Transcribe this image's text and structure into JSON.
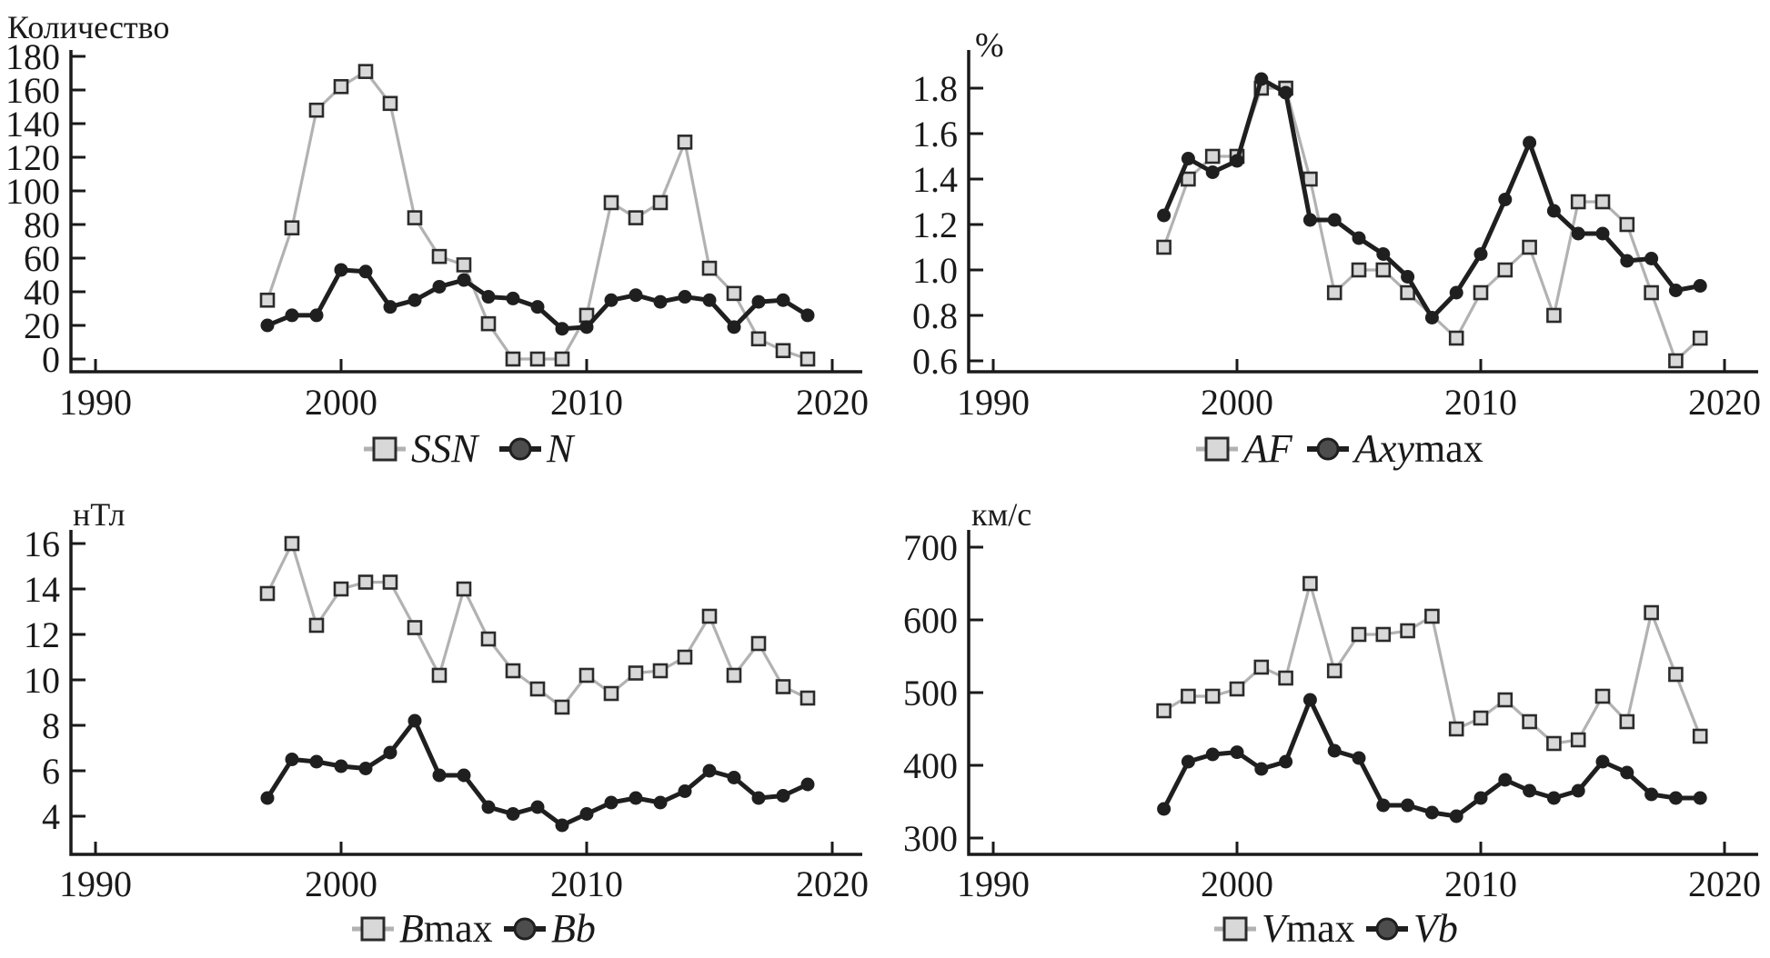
{
  "figure": {
    "background": "#ffffff",
    "axis_color": "#1a1a1a",
    "gray_series_color": "#b2b2b2",
    "gray_marker_fill": "#d8d8d8",
    "gray_marker_border": "#2b2b2b",
    "black_series_color": "#1f1f1f",
    "legend_circle_fill": "#4d4d4d"
  },
  "chart_data": [
    {
      "id": "count",
      "type": "line",
      "title": "Количество",
      "ylabel": "Количество",
      "xlabel": "",
      "grid": false,
      "legend_position": "below-center",
      "xlim": [
        1989,
        2021
      ],
      "ylim": [
        0,
        180
      ],
      "xticks": [
        "1990",
        "2000",
        "2010",
        "2020"
      ],
      "ytick_labels": [
        "0",
        "20",
        "40",
        "60",
        "80",
        "100",
        "120",
        "140",
        "160",
        "180"
      ],
      "ytick_values": [
        0,
        20,
        40,
        60,
        80,
        100,
        120,
        140,
        160,
        180
      ],
      "x": [
        1997,
        1998,
        1999,
        2000,
        2001,
        2002,
        2003,
        2004,
        2005,
        2006,
        2007,
        2008,
        2009,
        2010,
        2011,
        2012,
        2013,
        2014,
        2015,
        2016,
        2017,
        2018,
        2019
      ],
      "series": [
        {
          "name": "SSN",
          "marker": "square",
          "color": "gray",
          "label_parts": [
            {
              "text": "SSN",
              "italic": true
            }
          ],
          "values": [
            35,
            78,
            148,
            162,
            171,
            152,
            84,
            61,
            56,
            21,
            0,
            0,
            0,
            26,
            93,
            84,
            93,
            129,
            54,
            39,
            12,
            5,
            0
          ]
        },
        {
          "name": "N",
          "marker": "circle",
          "color": "black",
          "label_parts": [
            {
              "text": "N",
              "italic": true
            }
          ],
          "values": [
            20,
            26,
            26,
            53,
            52,
            31,
            35,
            43,
            47,
            37,
            36,
            31,
            18,
            19,
            35,
            38,
            34,
            37,
            35,
            19,
            34,
            35,
            26
          ]
        }
      ]
    },
    {
      "id": "percent",
      "type": "line",
      "title": "%",
      "ylabel": "%",
      "xlabel": "",
      "grid": false,
      "legend_position": "below-center",
      "xlim": [
        1989,
        2021
      ],
      "ylim": [
        0.6,
        1.8
      ],
      "xticks": [
        "1990",
        "2000",
        "2010",
        "2020"
      ],
      "ytick_labels": [
        "0.6",
        "0.8",
        "1.0",
        "1.2",
        "1.4",
        "1.6",
        "1.8"
      ],
      "ytick_values": [
        0.6,
        0.8,
        1.0,
        1.2,
        1.4,
        1.6,
        1.8
      ],
      "x": [
        1997,
        1998,
        1999,
        2000,
        2001,
        2002,
        2003,
        2004,
        2005,
        2006,
        2007,
        2008,
        2009,
        2010,
        2011,
        2012,
        2013,
        2014,
        2015,
        2016,
        2017,
        2018,
        2019
      ],
      "series": [
        {
          "name": "AF",
          "marker": "square",
          "color": "gray",
          "label_parts": [
            {
              "text": "AF",
              "italic": true
            }
          ],
          "values": [
            1.1,
            1.4,
            1.5,
            1.5,
            1.8,
            1.8,
            1.4,
            0.9,
            1.0,
            1.0,
            0.9,
            null,
            0.7,
            0.9,
            1.0,
            1.1,
            0.8,
            1.3,
            1.3,
            1.2,
            0.9,
            0.6,
            0.7
          ]
        },
        {
          "name": "Axymax",
          "marker": "circle",
          "color": "black",
          "label_parts": [
            {
              "text": "Axy",
              "italic": true
            },
            {
              "text": "max",
              "italic": false
            }
          ],
          "values": [
            1.24,
            1.49,
            1.43,
            1.48,
            1.84,
            1.78,
            1.22,
            1.22,
            1.14,
            1.07,
            0.97,
            0.79,
            0.9,
            1.07,
            1.31,
            1.56,
            1.26,
            1.16,
            1.16,
            1.04,
            1.05,
            0.91,
            0.93
          ]
        }
      ]
    },
    {
      "id": "nT",
      "type": "line",
      "title": "нТл",
      "ylabel": "нТл",
      "xlabel": "",
      "grid": false,
      "legend_position": "below-center",
      "xlim": [
        1989,
        2021
      ],
      "ylim": [
        4,
        16
      ],
      "xticks": [
        "1990",
        "2000",
        "2010",
        "2020"
      ],
      "ytick_labels": [
        "4",
        "6",
        "8",
        "10",
        "12",
        "14",
        "16"
      ],
      "ytick_values": [
        4,
        6,
        8,
        10,
        12,
        14,
        16
      ],
      "x": [
        1997,
        1998,
        1999,
        2000,
        2001,
        2002,
        2003,
        2004,
        2005,
        2006,
        2007,
        2008,
        2009,
        2010,
        2011,
        2012,
        2013,
        2014,
        2015,
        2016,
        2017,
        2018,
        2019
      ],
      "series": [
        {
          "name": "Bmax",
          "marker": "square",
          "color": "gray",
          "label_parts": [
            {
              "text": "B",
              "italic": true
            },
            {
              "text": "max",
              "italic": false
            }
          ],
          "values": [
            13.8,
            16.0,
            12.4,
            14.0,
            14.3,
            14.3,
            12.3,
            10.2,
            14.0,
            11.8,
            10.4,
            9.6,
            8.8,
            10.2,
            9.4,
            10.3,
            10.4,
            11.0,
            12.8,
            10.2,
            11.6,
            9.7,
            9.2
          ]
        },
        {
          "name": "Bb",
          "marker": "circle",
          "color": "black",
          "label_parts": [
            {
              "text": "Bb",
              "italic": true
            }
          ],
          "values": [
            4.8,
            6.5,
            6.4,
            6.2,
            6.1,
            6.8,
            8.2,
            5.8,
            5.8,
            4.4,
            4.1,
            4.4,
            3.6,
            4.1,
            4.6,
            4.8,
            4.6,
            5.1,
            6.0,
            5.7,
            4.8,
            4.9,
            5.4
          ]
        }
      ]
    },
    {
      "id": "kms",
      "type": "line",
      "title": "км/с",
      "ylabel": "км/с",
      "xlabel": "",
      "grid": false,
      "legend_position": "below-center",
      "xlim": [
        1989,
        2021
      ],
      "ylim": [
        300,
        700
      ],
      "xticks": [
        "1990",
        "2000",
        "2010",
        "2020"
      ],
      "ytick_labels": [
        "300",
        "400",
        "500",
        "600",
        "700"
      ],
      "ytick_values": [
        300,
        400,
        500,
        600,
        700
      ],
      "x": [
        1997,
        1998,
        1999,
        2000,
        2001,
        2002,
        2003,
        2004,
        2005,
        2006,
        2007,
        2008,
        2009,
        2010,
        2011,
        2012,
        2013,
        2014,
        2015,
        2016,
        2017,
        2018,
        2019
      ],
      "series": [
        {
          "name": "Vmax",
          "marker": "square",
          "color": "gray",
          "label_parts": [
            {
              "text": "V",
              "italic": true
            },
            {
              "text": "max",
              "italic": false
            }
          ],
          "values": [
            475,
            495,
            495,
            505,
            535,
            520,
            650,
            530,
            580,
            580,
            585,
            605,
            450,
            465,
            490,
            460,
            430,
            435,
            495,
            460,
            610,
            525,
            440
          ]
        },
        {
          "name": "Vb",
          "marker": "circle",
          "color": "black",
          "label_parts": [
            {
              "text": "Vb",
              "italic": true
            }
          ],
          "values": [
            340,
            405,
            415,
            418,
            395,
            405,
            490,
            420,
            410,
            345,
            345,
            335,
            330,
            355,
            380,
            365,
            355,
            365,
            405,
            390,
            360,
            355,
            355
          ]
        }
      ]
    }
  ]
}
